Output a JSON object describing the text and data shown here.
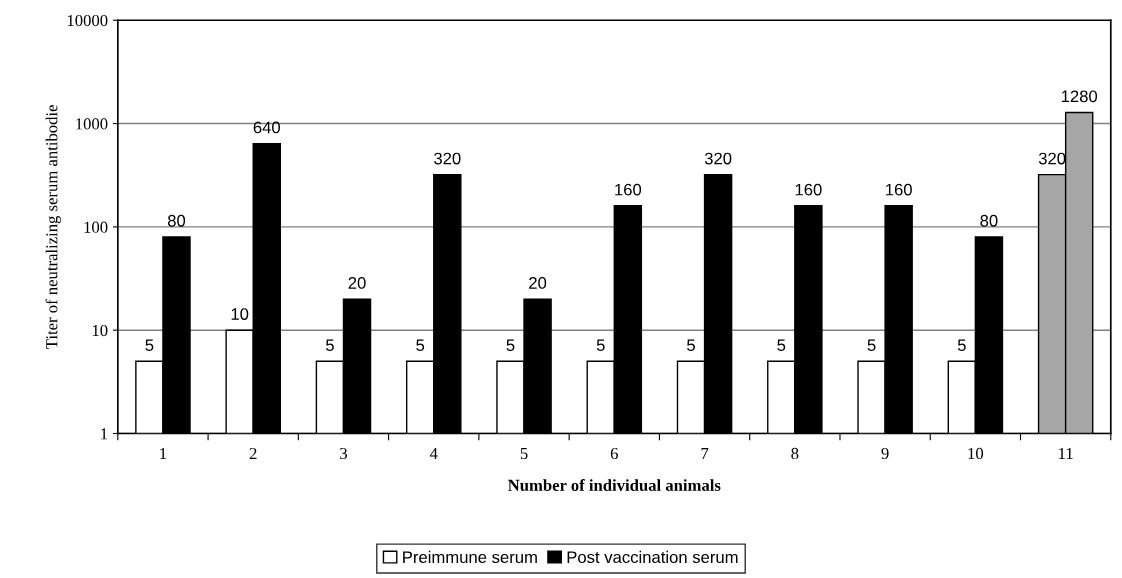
{
  "chart_data": {
    "type": "bar",
    "xlabel": "Number of individual animals",
    "ylabel": "Titer of neutralizing serum antibodie",
    "categories": [
      "1",
      "2",
      "3",
      "4",
      "5",
      "6",
      "7",
      "8",
      "9",
      "10",
      "11"
    ],
    "series": [
      {
        "name": "Preimmune serum",
        "color": "#ffffff",
        "colors": [
          "#ffffff",
          "#ffffff",
          "#ffffff",
          "#ffffff",
          "#ffffff",
          "#ffffff",
          "#ffffff",
          "#ffffff",
          "#ffffff",
          "#ffffff",
          "#a6a6a6"
        ],
        "values": [
          5,
          10,
          5,
          5,
          5,
          5,
          5,
          5,
          5,
          5,
          320
        ]
      },
      {
        "name": "Post vaccination serum",
        "color": "#000000",
        "colors": [
          "#000000",
          "#000000",
          "#000000",
          "#000000",
          "#000000",
          "#000000",
          "#000000",
          "#000000",
          "#000000",
          "#000000",
          "#a6a6a6"
        ],
        "values": [
          80,
          640,
          20,
          320,
          20,
          160,
          320,
          160,
          160,
          80,
          1280
        ]
      }
    ],
    "log": "y",
    "ylim": [
      1,
      10000
    ],
    "yticks": [
      1,
      10,
      100,
      1000,
      10000
    ],
    "grid": "y",
    "legend": "bottom",
    "data_labels": true
  }
}
